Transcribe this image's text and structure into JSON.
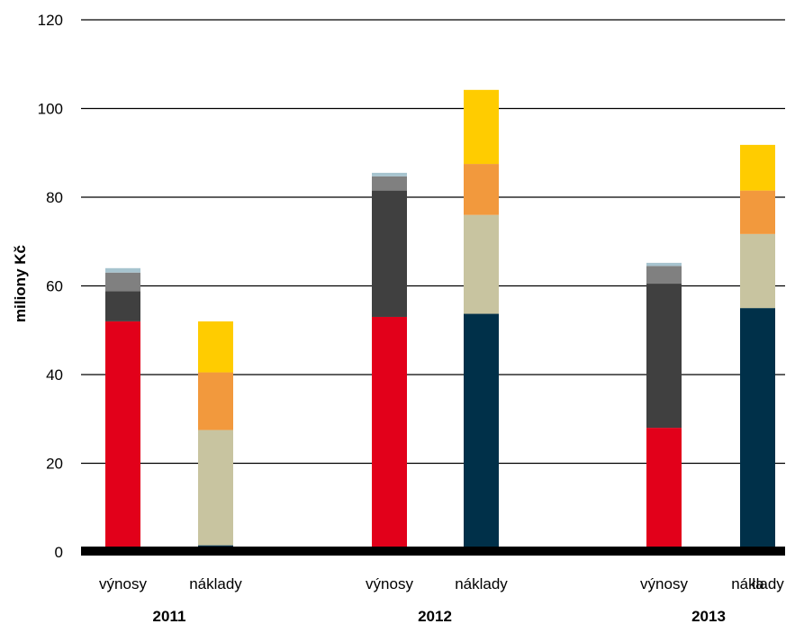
{
  "chart_data": {
    "type": "bar",
    "stacked": true,
    "title": "",
    "xlabel": "",
    "ylabel": "miliony Kč",
    "ylim": [
      0,
      120
    ],
    "yticks": [
      "0",
      "20",
      "40",
      "60",
      "80",
      "100",
      "120"
    ],
    "grid": true,
    "legend": "none",
    "groups": [
      "2011",
      "2012",
      "2013"
    ],
    "bar_labels": [
      "výnosy",
      "náklady"
    ],
    "bars": [
      {
        "group": "2011",
        "label": "výnosy",
        "segments": [
          {
            "value": 52.0,
            "color": "#e2001a"
          },
          {
            "value": 6.8,
            "color": "#404040"
          },
          {
            "value": 4.2,
            "color": "#808080"
          },
          {
            "value": 1.0,
            "color": "#a7c4cf"
          }
        ]
      },
      {
        "group": "2011",
        "label": "náklady",
        "segments": [
          {
            "value": 1.5,
            "color": "#003049"
          },
          {
            "value": 26.0,
            "color": "#c8c4a0"
          },
          {
            "value": 13.0,
            "color": "#f2993d"
          },
          {
            "value": 11.5,
            "color": "#ffcc00"
          }
        ]
      },
      {
        "group": "2012",
        "label": "výnosy",
        "segments": [
          {
            "value": 53.0,
            "color": "#e2001a"
          },
          {
            "value": 28.5,
            "color": "#404040"
          },
          {
            "value": 3.2,
            "color": "#808080"
          },
          {
            "value": 0.8,
            "color": "#a7c4cf"
          }
        ]
      },
      {
        "group": "2012",
        "label": "náklady",
        "segments": [
          {
            "value": 53.7,
            "color": "#003049"
          },
          {
            "value": 22.3,
            "color": "#c8c4a0"
          },
          {
            "value": 11.5,
            "color": "#f2993d"
          },
          {
            "value": 16.7,
            "color": "#ffcc00"
          }
        ]
      },
      {
        "group": "2013",
        "label": "výnosy",
        "segments": [
          {
            "value": 28.0,
            "color": "#e2001a"
          },
          {
            "value": 32.5,
            "color": "#404040"
          },
          {
            "value": 4.0,
            "color": "#808080"
          },
          {
            "value": 0.7,
            "color": "#a7c4cf"
          }
        ]
      },
      {
        "group": "2013",
        "label": "náklady",
        "segments": [
          {
            "value": 55.0,
            "color": "#003049"
          },
          {
            "value": 16.7,
            "color": "#c8c4a0"
          },
          {
            "value": 9.8,
            "color": "#f2993d"
          },
          {
            "value": 10.3,
            "color": "#ffcc00"
          }
        ]
      }
    ],
    "overlap_label_2013": "la"
  }
}
